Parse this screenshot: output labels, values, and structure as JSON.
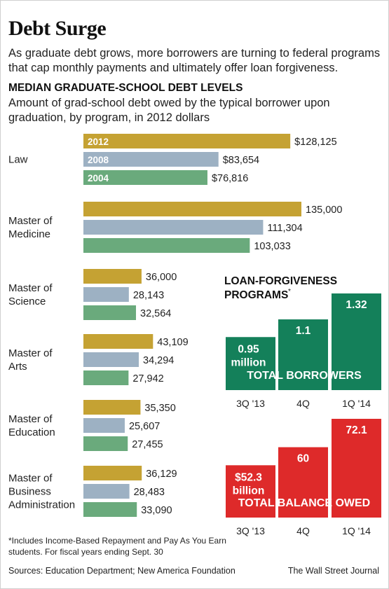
{
  "header": {
    "title": "Debt Surge",
    "deck": "As graduate debt grows, more borrowers are turning to federal programs that cap monthly payments and ultimately offer loan forgiveness."
  },
  "colors": {
    "y2012": "#c5a233",
    "y2008": "#9db1c3",
    "y2004": "#6aaa7c",
    "borrowers": "#14805a",
    "balance": "#de2a2a"
  },
  "chart_data": [
    {
      "type": "bar",
      "orientation": "horizontal",
      "title": "MEDIAN GRADUATE-SCHOOL DEBT LEVELS",
      "subtitle": "Amount of grad-school debt owed by the typical borrower upon graduation, by program, in 2012 dollars",
      "series_names": [
        "2012",
        "2008",
        "2004"
      ],
      "categories": [
        {
          "label": "Law",
          "values": [
            128125,
            83654,
            76816
          ],
          "labels": [
            "$128,125",
            "$83,654",
            "$76,816"
          ]
        },
        {
          "label": "Master of Medicine",
          "values": [
            135000,
            111304,
            103033
          ],
          "labels": [
            "135,000",
            "111,304",
            "103,033"
          ]
        },
        {
          "label": "Master of Science",
          "values": [
            36000,
            28143,
            32564
          ],
          "labels": [
            "36,000",
            "28,143",
            "32,564"
          ]
        },
        {
          "label": "Master of Arts",
          "values": [
            43109,
            34294,
            27942
          ],
          "labels": [
            "43,109",
            "34,294",
            "27,942"
          ]
        },
        {
          "label": "Master of Education",
          "values": [
            35350,
            25607,
            27455
          ],
          "labels": [
            "35,350",
            "25,607",
            "27,455"
          ]
        },
        {
          "label": "Master of Business Administration",
          "values": [
            36129,
            28483,
            33090
          ],
          "labels": [
            "36,129",
            "28,483",
            "33,090"
          ]
        }
      ]
    },
    {
      "type": "bar",
      "title": "LOAN-FORGIVENESS PROGRAMS*",
      "inner_label": "TOTAL BORROWERS",
      "categories": [
        "3Q '13",
        "4Q",
        "1Q '14"
      ],
      "values": [
        0.95,
        1.1,
        1.32
      ],
      "value_labels": [
        "0.95",
        "1.1",
        "1.32"
      ],
      "first_unit": "million"
    },
    {
      "type": "bar",
      "inner_label": "TOTAL BALANCE OWED",
      "categories": [
        "3Q '13",
        "4Q",
        "1Q '14"
      ],
      "values": [
        52.3,
        60,
        72.1
      ],
      "value_labels": [
        "$52.3",
        "60",
        "72.1"
      ],
      "first_unit": "billion"
    }
  ],
  "footer": {
    "footnote": "*Includes Income-Based Repayment and Pay As You Earn students. For fiscal years ending Sept. 30",
    "source": "Sources: Education Department; New America Foundation",
    "credit": "The Wall Street Journal"
  }
}
